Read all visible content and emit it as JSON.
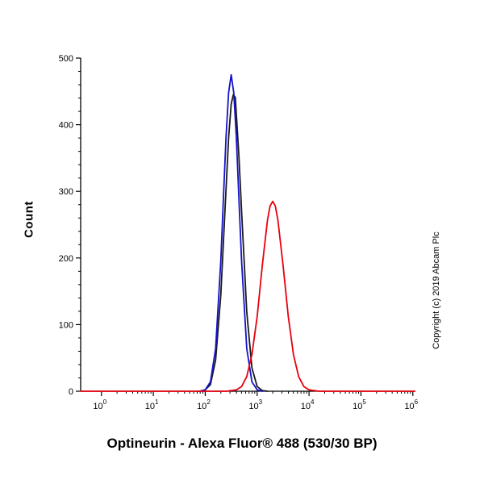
{
  "figure": {
    "ylabel": "Count",
    "xlabel": "Optineurin - Alexa Fluor® 488 (530/30 BP)",
    "copyright": "Copyright (c) 2019 Abcam Plc"
  },
  "chart_data": {
    "type": "line",
    "subtype": "flow-cytometry-histogram",
    "title": "",
    "xlabel": "Optineurin - Alexa Fluor® 488 (530/30 BP)",
    "ylabel": "Count",
    "x_scale": "log10",
    "x_range_log10": [
      0,
      6
    ],
    "ylim": [
      0,
      500
    ],
    "y_ticks": [
      0,
      100,
      200,
      300,
      400,
      500
    ],
    "y_minor_step": 20,
    "x_tick_exponents": [
      0,
      1,
      2,
      3,
      4,
      5,
      6
    ],
    "grid": false,
    "legend": "none",
    "axis_color": "#000000",
    "series": [
      {
        "name": "unlabelled-control-black",
        "color": "#1a1a1a",
        "peak_x_log10": 2.54,
        "peak_count": 445,
        "baseline_full_width": false,
        "points": [
          [
            1.9,
            0
          ],
          [
            2.0,
            2
          ],
          [
            2.1,
            10
          ],
          [
            2.2,
            47
          ],
          [
            2.3,
            144
          ],
          [
            2.4,
            303
          ],
          [
            2.45,
            380
          ],
          [
            2.5,
            431
          ],
          [
            2.54,
            445
          ],
          [
            2.58,
            441
          ],
          [
            2.65,
            352
          ],
          [
            2.7,
            270
          ],
          [
            2.8,
            119
          ],
          [
            2.9,
            35
          ],
          [
            3.0,
            7
          ],
          [
            3.1,
            1
          ],
          [
            3.2,
            0
          ]
        ]
      },
      {
        "name": "secondary-only-blue",
        "color": "#1212cc",
        "peak_x_log10": 2.5,
        "peak_count": 475,
        "baseline_full_width": false,
        "points": [
          [
            1.85,
            0
          ],
          [
            1.9,
            0
          ],
          [
            2.0,
            2
          ],
          [
            2.1,
            14
          ],
          [
            2.2,
            64
          ],
          [
            2.3,
            195
          ],
          [
            2.35,
            288
          ],
          [
            2.4,
            381
          ],
          [
            2.45,
            448
          ],
          [
            2.5,
            475
          ],
          [
            2.55,
            448
          ],
          [
            2.6,
            381
          ],
          [
            2.65,
            288
          ],
          [
            2.7,
            195
          ],
          [
            2.8,
            64
          ],
          [
            2.9,
            14
          ],
          [
            3.0,
            2
          ],
          [
            3.1,
            0
          ]
        ]
      },
      {
        "name": "optineurin-stained-red",
        "color": "#e8000d",
        "peak_x_log10": 3.3,
        "peak_count": 285,
        "baseline_full_width": true,
        "points": [
          [
            0,
            0
          ],
          [
            1.0,
            0
          ],
          [
            2.0,
            0
          ],
          [
            2.4,
            0
          ],
          [
            2.5,
            1
          ],
          [
            2.6,
            2
          ],
          [
            2.7,
            7
          ],
          [
            2.8,
            22
          ],
          [
            2.9,
            55
          ],
          [
            3.0,
            112
          ],
          [
            3.1,
            189
          ],
          [
            3.2,
            257
          ],
          [
            3.25,
            278
          ],
          [
            3.3,
            285
          ],
          [
            3.35,
            278
          ],
          [
            3.4,
            257
          ],
          [
            3.5,
            189
          ],
          [
            3.6,
            112
          ],
          [
            3.7,
            55
          ],
          [
            3.8,
            22
          ],
          [
            3.9,
            7
          ],
          [
            4.0,
            2
          ],
          [
            4.1,
            1
          ],
          [
            4.2,
            0
          ],
          [
            5.0,
            0
          ],
          [
            6.0,
            0
          ]
        ]
      }
    ]
  }
}
